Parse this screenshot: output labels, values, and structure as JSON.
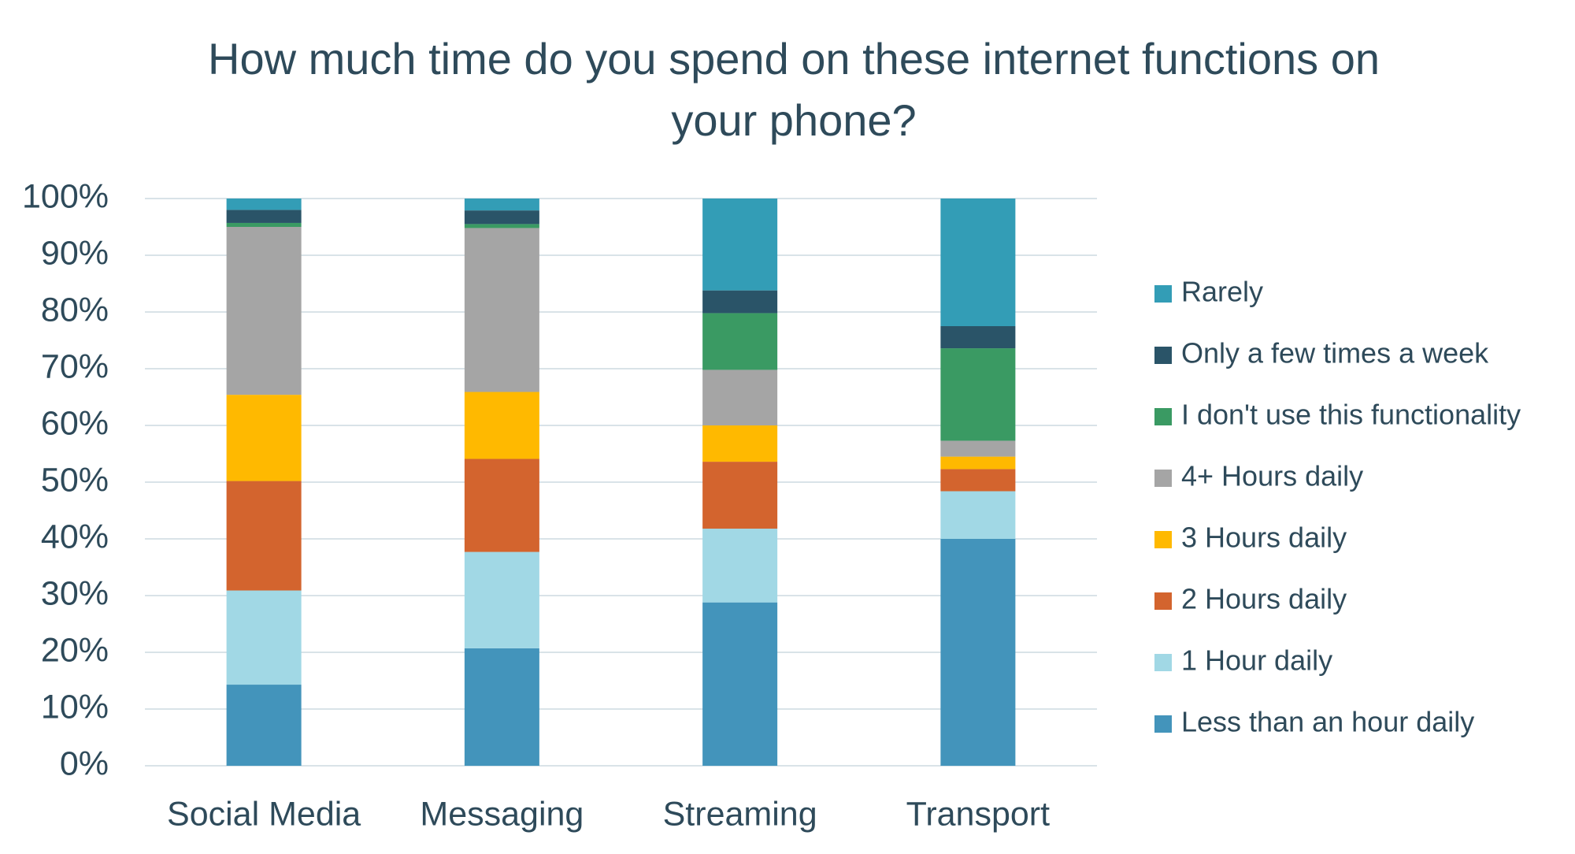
{
  "chart_data": {
    "type": "stacked_bar",
    "title": "How much time do you spend on these internet functions on your phone?",
    "categories": [
      "Social Media",
      "Messaging",
      "Streaming",
      "Transport"
    ],
    "series": [
      {
        "name": "Less than an hour daily",
        "color": "#4394bb",
        "values": [
          14.3,
          20.7,
          28.8,
          40.0
        ]
      },
      {
        "name": "1 Hour daily",
        "color": "#a1d8e5",
        "values": [
          16.6,
          17.0,
          13.0,
          8.4
        ]
      },
      {
        "name": "2 Hours daily",
        "color": "#d3642e",
        "values": [
          19.3,
          16.4,
          11.8,
          3.9
        ]
      },
      {
        "name": "3 Hours daily",
        "color": "#ffb900",
        "values": [
          15.2,
          11.8,
          6.4,
          2.2
        ]
      },
      {
        "name": "4+ Hours daily",
        "color": "#a5a5a5",
        "values": [
          29.6,
          28.9,
          9.8,
          2.8
        ]
      },
      {
        "name": "I don't use this functionality",
        "color": "#3a9a63",
        "values": [
          0.7,
          0.7,
          10.0,
          16.3
        ]
      },
      {
        "name": "Only a few times a week",
        "color": "#2a5468",
        "values": [
          2.3,
          2.4,
          4.0,
          3.9
        ]
      },
      {
        "name": "Rarely",
        "color": "#339db6",
        "values": [
          2.0,
          2.1,
          16.2,
          22.5
        ]
      }
    ],
    "ylim": [
      0,
      100
    ],
    "yticks": [
      {
        "value": 0,
        "label": "0%"
      },
      {
        "value": 10,
        "label": "10%"
      },
      {
        "value": 20,
        "label": "20%"
      },
      {
        "value": 30,
        "label": "30%"
      },
      {
        "value": 40,
        "label": "40%"
      },
      {
        "value": 50,
        "label": "50%"
      },
      {
        "value": 60,
        "label": "60%"
      },
      {
        "value": 70,
        "label": "70%"
      },
      {
        "value": 80,
        "label": "80%"
      },
      {
        "value": 90,
        "label": "90%"
      },
      {
        "value": 100,
        "label": "100%"
      }
    ],
    "grid": true,
    "legend": "right"
  }
}
